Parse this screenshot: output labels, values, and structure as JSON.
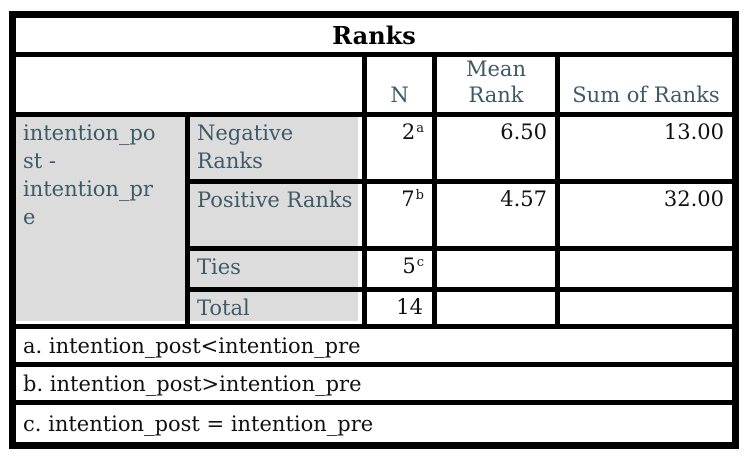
{
  "chart_data": {
    "type": "table",
    "title": "Ranks",
    "columns": {
      "n": "N",
      "mean_rank": "Mean Rank",
      "sum_of_ranks": "Sum of Ranks"
    },
    "row_group_label": "intention_post - intention_pre",
    "rows": [
      {
        "label": "Negative Ranks",
        "n": "2",
        "n_sup": "a",
        "mean_rank": "6.50",
        "sum_of_ranks": "13.00"
      },
      {
        "label": "Positive Ranks",
        "n": "7",
        "n_sup": "b",
        "mean_rank": "4.57",
        "sum_of_ranks": "32.00"
      },
      {
        "label": "Ties",
        "n": "5",
        "n_sup": "c",
        "mean_rank": "",
        "sum_of_ranks": ""
      },
      {
        "label": "Total",
        "n": "14",
        "n_sup": "",
        "mean_rank": "",
        "sum_of_ranks": ""
      }
    ],
    "footnotes": [
      "a. intention_post<intention_pre",
      "b. intention_post>intention_pre",
      "c. intention_post = intention_pre"
    ]
  },
  "colors": {
    "border": "#000000",
    "header_text": "#3e5a66",
    "label_cell_bg": "#dcdcdc",
    "value_text": "#111111",
    "background": "#ffffff"
  }
}
